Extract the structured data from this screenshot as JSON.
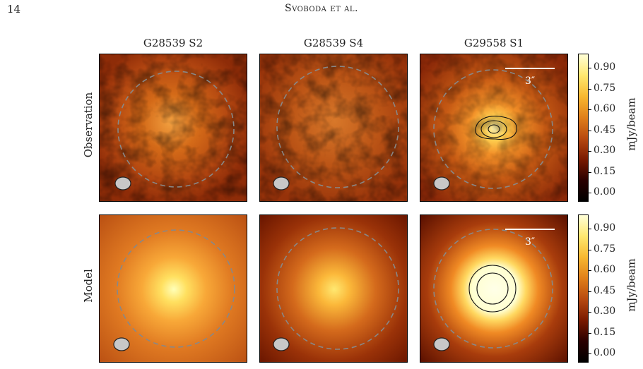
{
  "header": {
    "page_number": "14",
    "running_head": "Svoboda et al."
  },
  "figure": {
    "columns": [
      "G28539 S2",
      "G28539 S4",
      "G29558 S1"
    ],
    "rows": [
      "Observation",
      "Model"
    ],
    "scale_bar_label": "3″",
    "colorbar": {
      "label": "mJy/beam",
      "ticks": [
        "0.90",
        "0.75",
        "0.60",
        "0.45",
        "0.30",
        "0.15",
        "0.00"
      ],
      "colors": [
        "#000000",
        "#2a0000",
        "#7a1a00",
        "#b84a10",
        "#e0801a",
        "#f8b830",
        "#ffe870",
        "#ffffd8"
      ]
    },
    "panel_colors": {
      "dashed_circle": "#888888",
      "beam_fill": "#c8c8c8",
      "contour": "#111111",
      "scale_bar": "#ffffff"
    }
  }
}
